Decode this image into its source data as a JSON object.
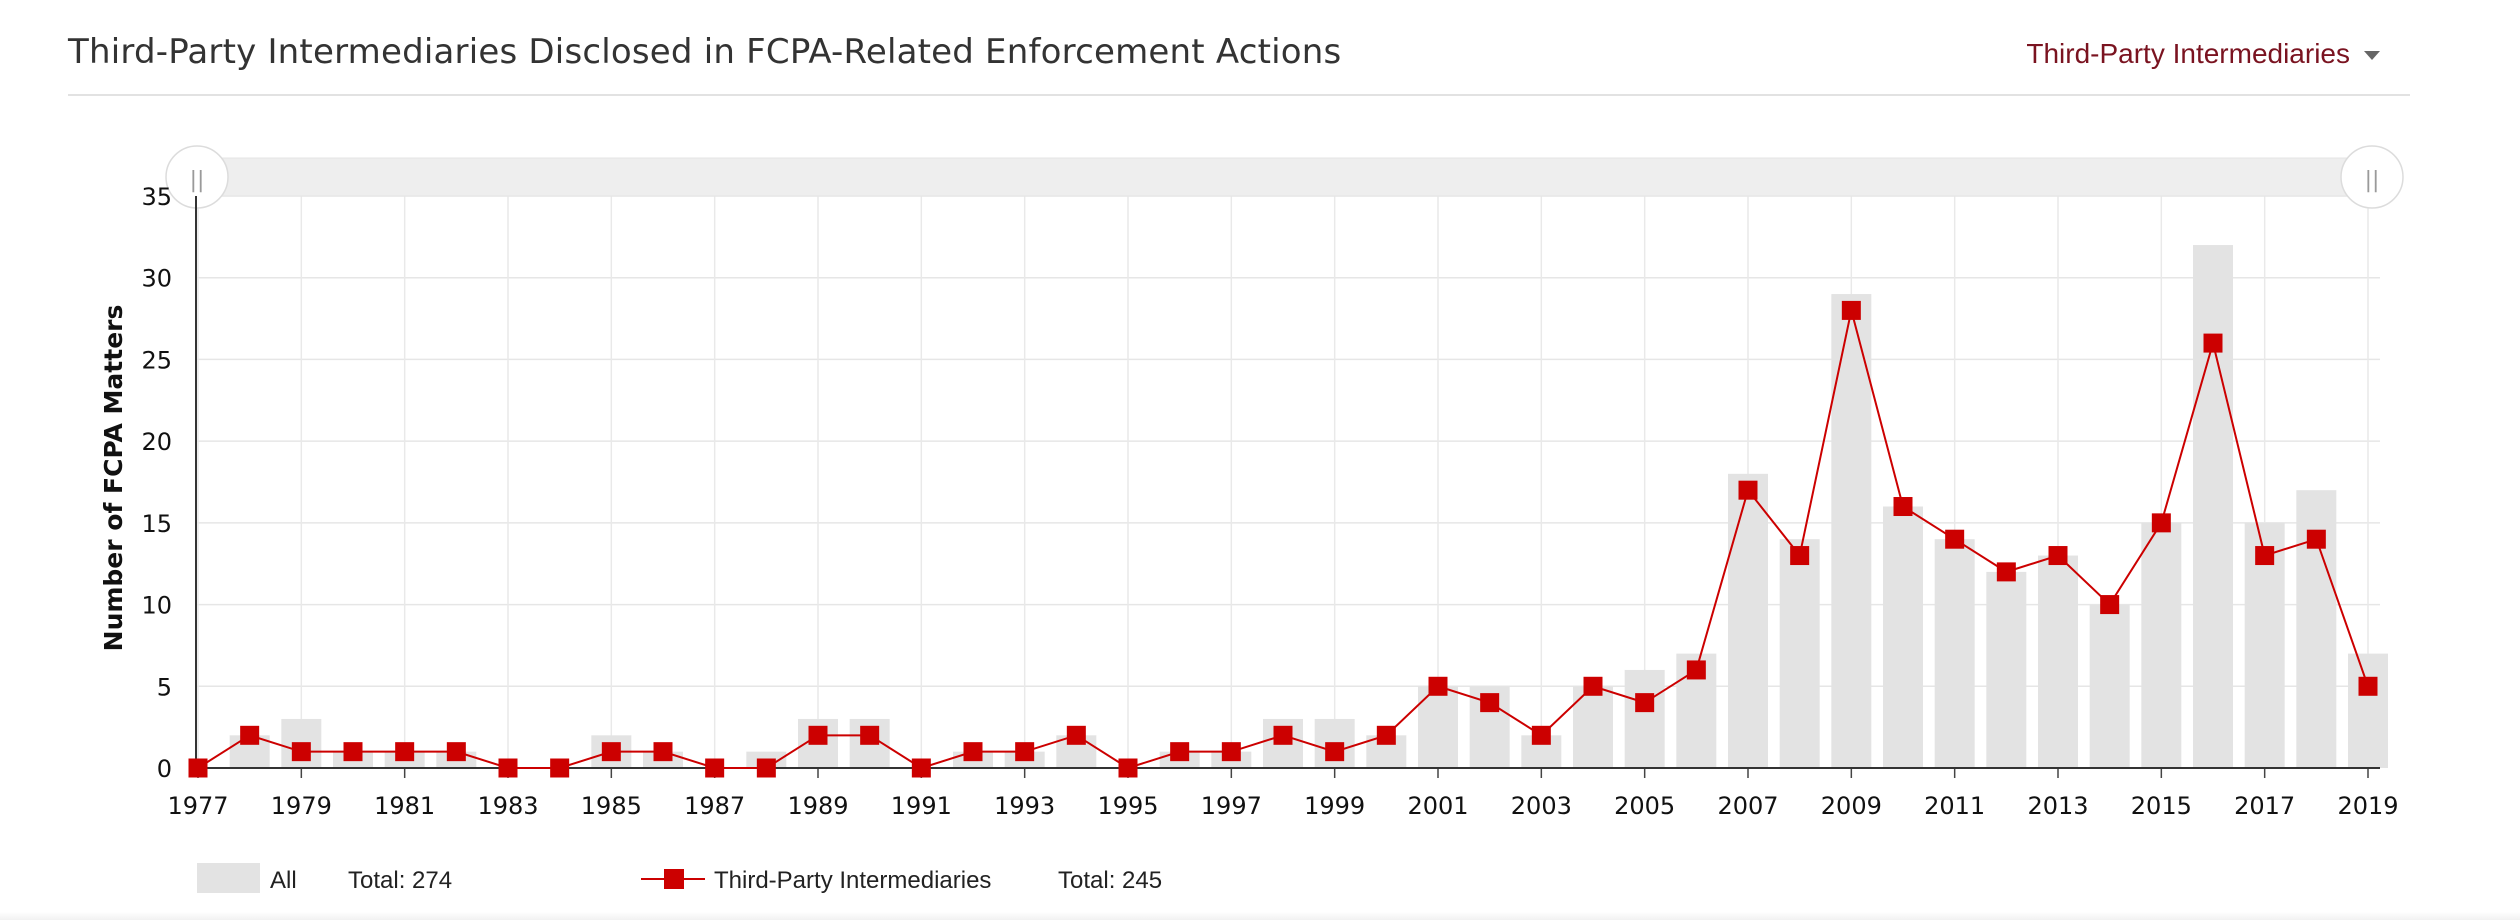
{
  "header": {
    "title": "Third-Party Intermediaries Disclosed in FCPA-Related Enforcement Actions",
    "filter_label": "Third-Party Intermediaries"
  },
  "chart_data": {
    "type": "bar",
    "ylabel": "Number of FCPA Matters",
    "xlabel": "",
    "ylim": [
      0,
      35
    ],
    "y_ticks": [
      "0",
      "5",
      "10",
      "15",
      "20",
      "25",
      "30",
      "35"
    ],
    "x_tick_labels": [
      "1977",
      "1979",
      "1981",
      "1983",
      "1985",
      "1987",
      "1989",
      "1991",
      "1993",
      "1995",
      "1997",
      "1999",
      "2001",
      "2003",
      "2005",
      "2007",
      "2009",
      "2011",
      "2013",
      "2015",
      "2017",
      "2019"
    ],
    "categories": [
      "1977",
      "1978",
      "1979",
      "1980",
      "1981",
      "1982",
      "1983",
      "1984",
      "1985",
      "1986",
      "1987",
      "1988",
      "1989",
      "1990",
      "1991",
      "1992",
      "1993",
      "1994",
      "1995",
      "1996",
      "1997",
      "1998",
      "1999",
      "2000",
      "2001",
      "2002",
      "2003",
      "2004",
      "2005",
      "2006",
      "2007",
      "2008",
      "2009",
      "2010",
      "2011",
      "2012",
      "2013",
      "2014",
      "2015",
      "2016",
      "2017",
      "2018",
      "2019"
    ],
    "series": [
      {
        "name": "All",
        "kind": "bar",
        "color": "#e3e3e3",
        "values": [
          0,
          2,
          3,
          1,
          1,
          1,
          0,
          0,
          2,
          1,
          0,
          1,
          3,
          3,
          0,
          1,
          1,
          2,
          0,
          1,
          1,
          3,
          3,
          2,
          5,
          5,
          2,
          5,
          6,
          7,
          18,
          14,
          29,
          16,
          14,
          12,
          13,
          10,
          15,
          32,
          15,
          17,
          7
        ]
      },
      {
        "name": "Third-Party Intermediaries",
        "kind": "line",
        "color": "#cc0000",
        "values": [
          0,
          2,
          1,
          1,
          1,
          1,
          0,
          0,
          1,
          1,
          0,
          0,
          2,
          2,
          0,
          1,
          1,
          2,
          0,
          1,
          1,
          2,
          1,
          2,
          5,
          4,
          2,
          5,
          4,
          6,
          17,
          13,
          28,
          16,
          14,
          12,
          13,
          10,
          15,
          26,
          13,
          14,
          5
        ]
      }
    ],
    "legend": {
      "placement": "bottom-left",
      "items": [
        {
          "label": "All",
          "total": "Total: 274"
        },
        {
          "label": "Third-Party Intermediaries",
          "total": "Total: 245"
        }
      ]
    },
    "navigator": {
      "left_handle": "||",
      "right_handle": "||"
    },
    "grid": true
  }
}
